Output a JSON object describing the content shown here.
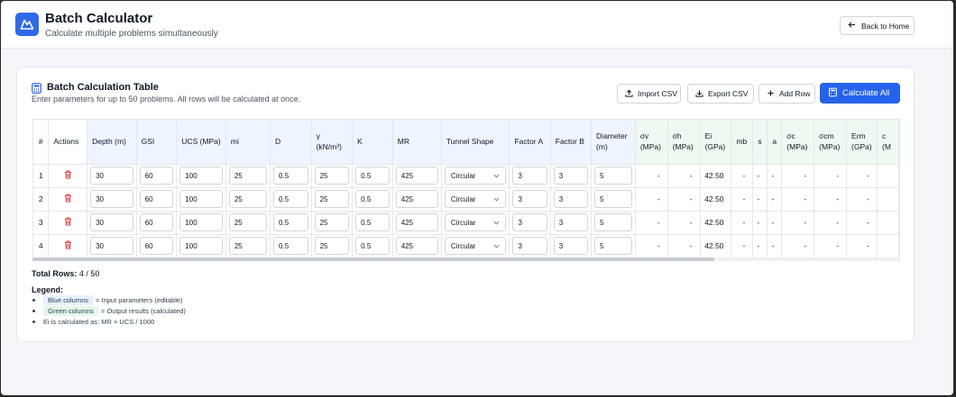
{
  "header": {
    "title": "Batch Calculator",
    "subtitle": "Calculate multiple problems simultaneously",
    "back_label": "Back to Home"
  },
  "card": {
    "title": "Batch Calculation Table",
    "description": "Enter parameters for up to 50 problems. All rows will be calculated at once.",
    "import_label": "Import CSV",
    "export_label": "Export CSV",
    "add_row_label": "Add Row",
    "calc_label": "Calculate All"
  },
  "table": {
    "headers": {
      "index": "#",
      "actions": "Actions",
      "depth": "Depth (m)",
      "gsi": "GSI",
      "ucs": "UCS (MPa)",
      "mi": "mi",
      "d": "D",
      "gamma": "γ (kN/m³)",
      "k": "K",
      "mr": "MR",
      "shape": "Tunnel Shape",
      "factor_a": "Factor A",
      "factor_b": "Factor B",
      "diameter": "Diameter (m)",
      "sv": "σv (MPa)",
      "sh": "σh (MPa)",
      "ei": "Ei (GPa)",
      "mb": "mb",
      "s": "s",
      "a": "a",
      "sc": "σc (MPa)",
      "scm": "σcm (MPa)",
      "erm": "Erm (GPa)",
      "c": "c (M"
    },
    "rows": [
      {
        "idx": "1",
        "depth": "30",
        "gsi": "60",
        "ucs": "100",
        "mi": "25",
        "d": "0.5",
        "gamma": "25",
        "k": "0.5",
        "mr": "425",
        "shape": "Circular",
        "fa": "3",
        "fb": "3",
        "dia": "5",
        "sv": "-",
        "sh": "-",
        "ei": "42.50",
        "mb": "-",
        "s": "-",
        "a": "-",
        "sc": "-",
        "scm": "-",
        "erm": "-",
        "c": ""
      },
      {
        "idx": "2",
        "depth": "30",
        "gsi": "60",
        "ucs": "100",
        "mi": "25",
        "d": "0.5",
        "gamma": "25",
        "k": "0.5",
        "mr": "425",
        "shape": "Circular",
        "fa": "3",
        "fb": "3",
        "dia": "5",
        "sv": "-",
        "sh": "-",
        "ei": "42.50",
        "mb": "-",
        "s": "-",
        "a": "-",
        "sc": "-",
        "scm": "-",
        "erm": "-",
        "c": ""
      },
      {
        "idx": "3",
        "depth": "30",
        "gsi": "60",
        "ucs": "100",
        "mi": "25",
        "d": "0.5",
        "gamma": "25",
        "k": "0.5",
        "mr": "425",
        "shape": "Circular",
        "fa": "3",
        "fb": "3",
        "dia": "5",
        "sv": "-",
        "sh": "-",
        "ei": "42.50",
        "mb": "-",
        "s": "-",
        "a": "-",
        "sc": "-",
        "scm": "-",
        "erm": "-",
        "c": ""
      },
      {
        "idx": "4",
        "depth": "30",
        "gsi": "60",
        "ucs": "100",
        "mi": "25",
        "d": "0.5",
        "gamma": "25",
        "k": "0.5",
        "mr": "425",
        "shape": "Circular",
        "fa": "3",
        "fb": "3",
        "dia": "5",
        "sv": "-",
        "sh": "-",
        "ei": "42.50",
        "mb": "-",
        "s": "-",
        "a": "-",
        "sc": "-",
        "scm": "-",
        "erm": "-",
        "c": ""
      }
    ]
  },
  "footer": {
    "total_label": "Total Rows:",
    "total_value": "4 / 50",
    "legend_title": "Legend:",
    "legend_blue_chip": "Blue columns",
    "legend_blue_text": "= Input parameters (editable)",
    "legend_green_chip": "Green columns",
    "legend_green_text": "= Output results (calculated)",
    "legend_ei_text": "Ei is calculated as: MR × UCS / 1000"
  },
  "colors": {
    "accent": "#2563eb",
    "input_header": "#eef5ff",
    "output_header": "#eefaf1",
    "delete_icon": "#dc2626"
  },
  "icons": {
    "logo": "mountain-icon",
    "back": "arrow-left-icon",
    "import": "upload-icon",
    "export": "download-icon",
    "add": "plus-icon",
    "calc": "calculator-icon",
    "delete": "trash-icon",
    "select": "chevron-down-icon"
  }
}
